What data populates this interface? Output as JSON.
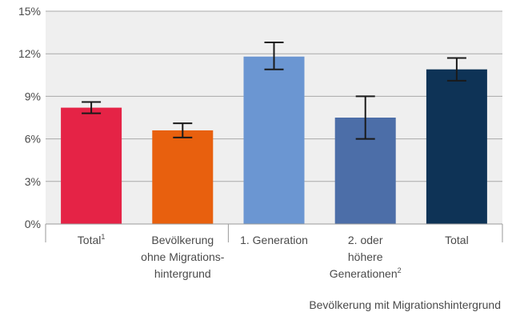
{
  "chart_data": {
    "type": "bar",
    "title": "",
    "xlabel": "",
    "ylabel": "",
    "ylim": [
      0,
      15
    ],
    "yticks": [
      0,
      3,
      6,
      9,
      12,
      15
    ],
    "ytick_labels": [
      "0%",
      "3%",
      "6%",
      "9%",
      "12%",
      "15%"
    ],
    "grid": true,
    "legend": "none",
    "categories": [
      {
        "lines": [
          "Total"
        ],
        "sup": "1"
      },
      {
        "lines": [
          "Bevölkerung",
          "ohne Migrations-",
          "hintergrund"
        ],
        "sup": ""
      },
      {
        "lines": [
          "1. Generation"
        ],
        "sup": ""
      },
      {
        "lines": [
          "2. oder",
          "höhere",
          "Generationen"
        ],
        "sup": "2"
      },
      {
        "lines": [
          "Total"
        ],
        "sup": ""
      }
    ],
    "values": [
      8.2,
      6.6,
      11.8,
      7.5,
      10.9
    ],
    "error_low": [
      7.8,
      6.1,
      10.9,
      6.0,
      10.1
    ],
    "error_high": [
      8.6,
      7.1,
      12.8,
      9.0,
      11.7
    ],
    "colors": [
      "#e52346",
      "#e8600e",
      "#6b96d2",
      "#4c6ea8",
      "#0e3356"
    ],
    "group_label": "Bevölkerung mit Migrationshintergrund",
    "group_categories": [
      2,
      3,
      4
    ]
  }
}
